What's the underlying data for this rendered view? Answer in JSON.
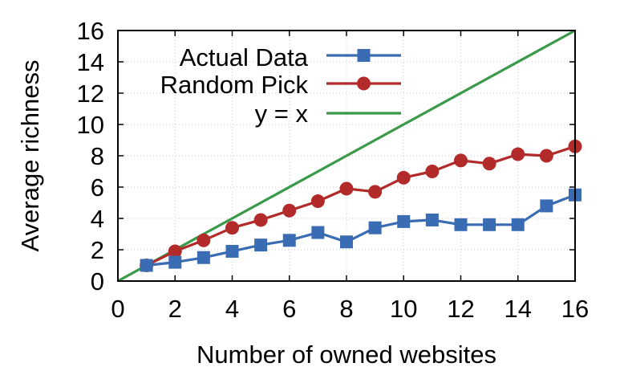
{
  "chart_data": {
    "type": "line",
    "xlabel": "Number of owned websites",
    "ylabel": "Average richness",
    "xlim": [
      0,
      16
    ],
    "ylim": [
      0,
      16
    ],
    "xticks": [
      "0",
      "2",
      "4",
      "6",
      "8",
      "10",
      "12",
      "14",
      "16"
    ],
    "yticks": [
      "0",
      "2",
      "4",
      "6",
      "8",
      "10",
      "12",
      "14",
      "16"
    ],
    "grid": true,
    "legend_position": "top-left",
    "series": [
      {
        "name": "Actual Data",
        "color": "#3a6cb4",
        "marker": "square",
        "x": [
          1,
          2,
          3,
          4,
          5,
          6,
          7,
          8,
          9,
          10,
          11,
          12,
          13,
          14,
          15,
          16
        ],
        "y": [
          1.0,
          1.2,
          1.5,
          1.9,
          2.3,
          2.6,
          3.1,
          2.5,
          3.4,
          3.8,
          3.9,
          3.6,
          3.6,
          3.6,
          4.8,
          5.5
        ]
      },
      {
        "name": "Random Pick",
        "color": "#b22a2a",
        "marker": "circle",
        "x": [
          1,
          2,
          3,
          4,
          5,
          6,
          7,
          8,
          9,
          10,
          11,
          12,
          13,
          14,
          15,
          16
        ],
        "y": [
          1.0,
          1.9,
          2.6,
          3.4,
          3.9,
          4.5,
          5.1,
          5.9,
          5.7,
          6.6,
          7.0,
          7.7,
          7.5,
          8.1,
          8.0,
          8.6
        ]
      },
      {
        "name": "y = x",
        "color": "#3a9a4a",
        "marker": "none",
        "x": [
          0,
          16
        ],
        "y": [
          0,
          16
        ]
      }
    ]
  }
}
